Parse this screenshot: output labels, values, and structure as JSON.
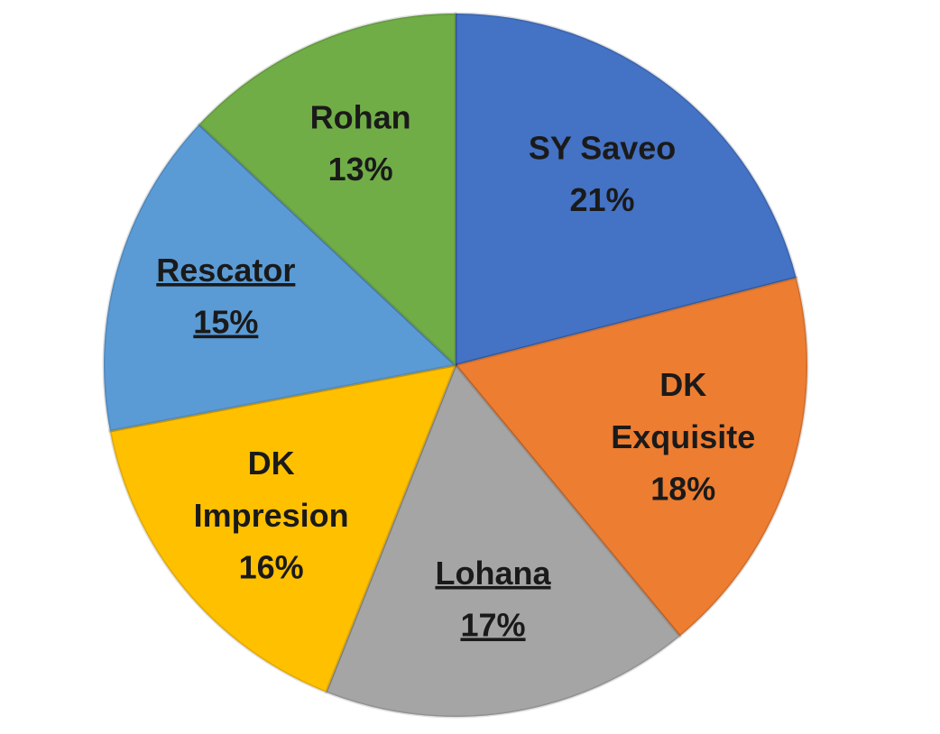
{
  "chart_data": {
    "type": "pie",
    "categories": [
      "SY Saveo",
      "DK Exquisite",
      "Lohana",
      "DK Impresion",
      "Rescator",
      "Rohan"
    ],
    "values": [
      21,
      18,
      17,
      16,
      15,
      13
    ],
    "value_labels": [
      "21%",
      "18%",
      "17%",
      "16%",
      "15%",
      "13%"
    ],
    "colors": [
      "#4472c4",
      "#ed7d31",
      "#a5a5a5",
      "#ffc000",
      "#5b9bd5",
      "#70ad47"
    ],
    "underline": [
      false,
      false,
      true,
      false,
      true,
      false
    ]
  }
}
